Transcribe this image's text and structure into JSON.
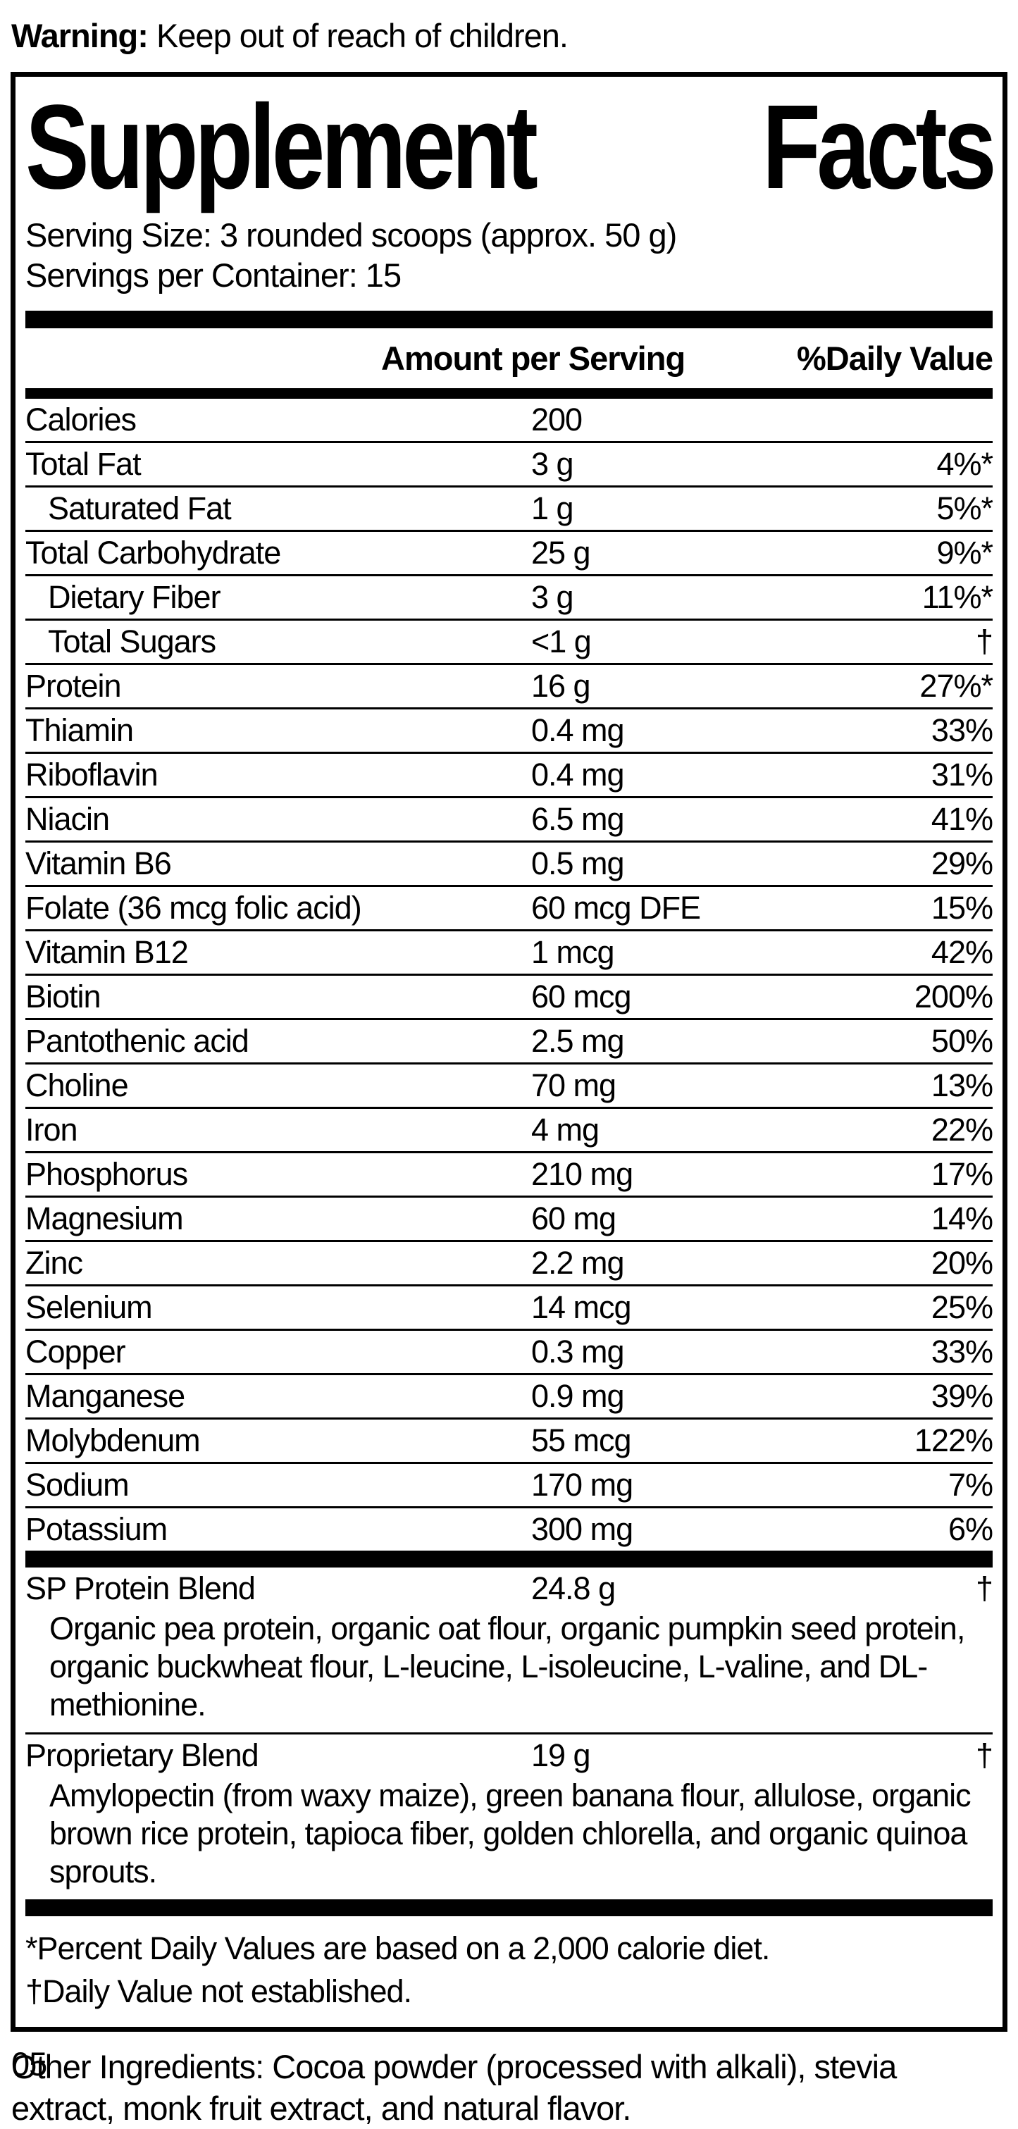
{
  "warning": {
    "bold": "Warning:",
    "text": " Keep out of reach of children."
  },
  "panel": {
    "title_left": "Supplement",
    "title_right": "Facts",
    "serving_size": "Serving Size: 3 rounded scoops (approx. 50 g)",
    "servings_per_container": "Servings per Container: 15",
    "columns": {
      "amount": "Amount per Serving",
      "daily_value": "%Daily Value"
    },
    "rows": [
      {
        "label": "Calories",
        "amount": "200",
        "dv": "",
        "indent": false
      },
      {
        "label": "Total Fat",
        "amount": "3 g",
        "dv": "4%*",
        "indent": false
      },
      {
        "label": "Saturated Fat",
        "amount": "1 g",
        "dv": "5%*",
        "indent": true
      },
      {
        "label": "Total Carbohydrate",
        "amount": "25 g",
        "dv": "9%*",
        "indent": false
      },
      {
        "label": "Dietary Fiber",
        "amount": "3 g",
        "dv": "11%*",
        "indent": true
      },
      {
        "label": "Total Sugars",
        "amount": "<1 g",
        "dv": "†",
        "indent": true
      },
      {
        "label": "Protein",
        "amount": "16 g",
        "dv": "27%*",
        "indent": false
      },
      {
        "label": "Thiamin",
        "amount": "0.4 mg",
        "dv": "33%",
        "indent": false
      },
      {
        "label": "Riboflavin",
        "amount": "0.4 mg",
        "dv": "31%",
        "indent": false
      },
      {
        "label": "Niacin",
        "amount": "6.5 mg",
        "dv": "41%",
        "indent": false
      },
      {
        "label": "Vitamin B6",
        "amount": "0.5 mg",
        "dv": "29%",
        "indent": false
      },
      {
        "label": "Folate (36 mcg folic acid)",
        "amount": "60 mcg DFE",
        "dv": "15%",
        "indent": false
      },
      {
        "label": "Vitamin B12",
        "amount": "1 mcg",
        "dv": "42%",
        "indent": false
      },
      {
        "label": "Biotin",
        "amount": "60 mcg",
        "dv": "200%",
        "indent": false
      },
      {
        "label": "Pantothenic acid",
        "amount": "2.5 mg",
        "dv": "50%",
        "indent": false
      },
      {
        "label": "Choline",
        "amount": "70 mg",
        "dv": "13%",
        "indent": false
      },
      {
        "label": "Iron",
        "amount": "4 mg",
        "dv": "22%",
        "indent": false
      },
      {
        "label": "Phosphorus",
        "amount": "210 mg",
        "dv": "17%",
        "indent": false
      },
      {
        "label": "Magnesium",
        "amount": "60 mg",
        "dv": "14%",
        "indent": false
      },
      {
        "label": "Zinc",
        "amount": "2.2 mg",
        "dv": "20%",
        "indent": false
      },
      {
        "label": "Selenium",
        "amount": "14 mcg",
        "dv": "25%",
        "indent": false
      },
      {
        "label": "Copper",
        "amount": "0.3 mg",
        "dv": "33%",
        "indent": false
      },
      {
        "label": "Manganese",
        "amount": "0.9 mg",
        "dv": "39%",
        "indent": false
      },
      {
        "label": "Molybdenum",
        "amount": "55 mcg",
        "dv": "122%",
        "indent": false
      },
      {
        "label": "Sodium",
        "amount": "170 mg",
        "dv": "7%",
        "indent": false
      },
      {
        "label": "Potassium",
        "amount": "300 mg",
        "dv": "6%",
        "indent": false
      }
    ],
    "blends": [
      {
        "name": "SP Protein Blend",
        "amount": "24.8 g",
        "dv": "†",
        "desc": "Organic pea protein, organic oat flour, organic pumpkin seed protein, organic buckwheat flour, L-leucine, L-isoleucine, L-valine, and DL-methionine."
      },
      {
        "name": "Proprietary Blend",
        "amount": "19 g",
        "dv": "†",
        "desc": "Amylopectin (from waxy maize), green banana flour, allulose, organic brown rice protein, tapioca fiber, golden chlorella, and organic quinoa sprouts."
      }
    ],
    "footnotes": [
      "*Percent Daily Values are based on a 2,000 calorie diet.",
      "†Daily Value not established."
    ]
  },
  "other_ingredients": "Other Ingredients: Cocoa powder (processed with alkali), stevia extract, monk fruit extract, and natural flavor.",
  "page_code": "05",
  "colors": {
    "ink": "#000000",
    "paper": "#ffffff"
  }
}
